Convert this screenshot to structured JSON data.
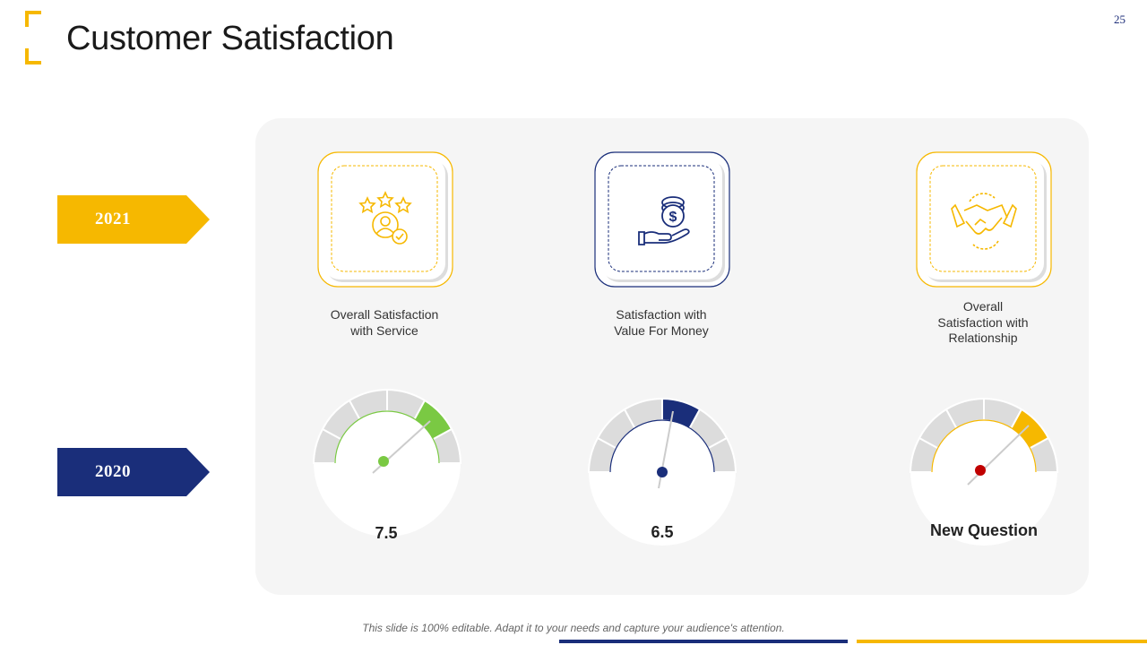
{
  "header": {
    "title": "Customer Satisfaction",
    "page_number": "25"
  },
  "years": {
    "current": "2021",
    "previous": "2020"
  },
  "metrics": [
    {
      "label_lines": [
        "Overall Satisfaction",
        "with Service"
      ],
      "icon": "rating-person-icon",
      "value": "7.5",
      "color": "#f6b800",
      "gauge_color": "#7ac943"
    },
    {
      "label_lines": [
        "Satisfaction with",
        "Value For Money"
      ],
      "icon": "hand-money-icon",
      "value": "6.5",
      "color": "#1a2e7a",
      "gauge_color": "#1a2e7a"
    },
    {
      "label_lines": [
        "Overall",
        "Satisfaction with",
        "Relationship"
      ],
      "icon": "handshake-icon",
      "value": "New Question",
      "color": "#f6b800",
      "gauge_color": "#f6b800"
    }
  ],
  "footer": {
    "note": "This slide is 100% editable. Adapt it to your needs and capture your audience's attention."
  },
  "colors": {
    "accent_yellow": "#f6b800",
    "accent_blue": "#1a2e7a",
    "green": "#7ac943",
    "needle_dot_red": "#c00000"
  }
}
